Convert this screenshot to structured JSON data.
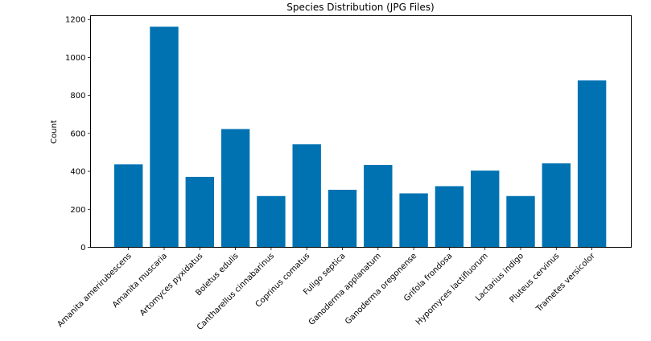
{
  "chart_data": {
    "type": "bar",
    "title": "Species Distribution (JPG Files)",
    "xlabel": "",
    "ylabel": "Count",
    "ylim": [
      0,
      1220
    ],
    "yticks": [
      0,
      200,
      400,
      600,
      800,
      1000,
      1200
    ],
    "grid": false,
    "bar_color": "#0072b2",
    "categories": [
      "Amanita amerirubescens",
      "Amanita muscaria",
      "Artomyces pyxidatus",
      "Boletus edulis",
      "Cantharellus cinnabarinus",
      "Coprinus comatus",
      "Fuligo septica",
      "Ganoderma applanatum",
      "Ganoderma oregonense",
      "Grifola frondosa",
      "Hypomyces lactifluorum",
      "Lactarius indigo",
      "Pluteus cervinus",
      "Trametes versicolor"
    ],
    "values": [
      437,
      1162,
      371,
      623,
      270,
      543,
      303,
      434,
      284,
      322,
      404,
      270,
      442,
      879
    ]
  }
}
